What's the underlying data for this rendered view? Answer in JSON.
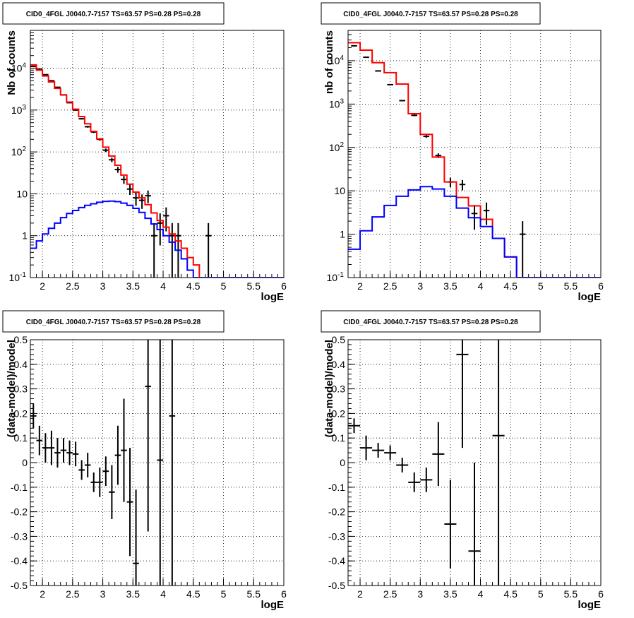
{
  "chart_data": [
    {
      "type": "line",
      "title": "CID0_4FGL J0040.7-7157 TS=63.57 PS=0.28 PS=0.28",
      "xlabel": "logE",
      "ylabel": "Nb of counts",
      "xlim": [
        1.8,
        6.0
      ],
      "ylim": [
        0.1,
        80000
      ],
      "yscale": "log",
      "grid": true,
      "xticks": [
        "2",
        "2.5",
        "3",
        "3.5",
        "4",
        "4.5",
        "5",
        "5.5",
        "6"
      ],
      "yticks": [
        "10^-1",
        "1",
        "10",
        "10^2",
        "10^3",
        "10^4"
      ],
      "bin_edges": [
        1.8,
        1.9,
        2.0,
        2.1,
        2.2,
        2.3,
        2.4,
        2.5,
        2.6,
        2.7,
        2.8,
        2.9,
        3.0,
        3.1,
        3.2,
        3.3,
        3.4,
        3.5,
        3.6,
        3.7,
        3.8,
        3.9,
        4.0,
        4.1,
        4.2,
        4.3,
        4.4,
        4.5,
        4.6,
        4.7,
        4.8,
        4.9,
        5.0,
        5.1,
        5.2,
        5.3,
        5.4,
        5.5,
        5.6,
        5.7,
        5.8,
        5.9,
        6.0
      ],
      "series": [
        {
          "color": "#000000",
          "kind": "points",
          "x": [
            1.85,
            1.95,
            2.05,
            2.15,
            2.25,
            2.35,
            2.45,
            2.55,
            2.65,
            2.75,
            2.85,
            2.95,
            3.05,
            3.15,
            3.25,
            3.35,
            3.45,
            3.55,
            3.65,
            3.75,
            3.85,
            3.95,
            4.05,
            4.15,
            4.25,
            4.75
          ],
          "y": [
            11000,
            9500,
            7000,
            5000,
            3500,
            2300,
            1500,
            1000,
            620,
            400,
            300,
            200,
            110,
            65,
            38,
            22,
            13,
            8,
            7,
            9,
            1,
            2,
            3,
            1,
            1,
            1
          ]
        },
        {
          "color": "#ff0000",
          "kind": "hist",
          "values": [
            12000,
            9000,
            6500,
            4700,
            3300,
            2300,
            1550,
            1050,
            700,
            470,
            310,
            205,
            130,
            80,
            48,
            28,
            17,
            11,
            8,
            5.5,
            3.5,
            2.3,
            1.6,
            1.1,
            0.75,
            0.5,
            0.3,
            0.2,
            0.1,
            0.1,
            0.1,
            0.1,
            0.1,
            0.1,
            0.1,
            0.1,
            0.1,
            0.1,
            0.1,
            0.1,
            0.1,
            0.1
          ]
        },
        {
          "color": "#0000ff",
          "kind": "hist",
          "values": [
            0.5,
            0.75,
            1.1,
            1.5,
            2.0,
            2.7,
            3.4,
            4.0,
            4.7,
            5.3,
            5.8,
            6.3,
            6.6,
            6.7,
            6.5,
            6.0,
            5.3,
            4.5,
            3.6,
            2.6,
            1.9,
            1.4,
            1.0,
            0.7,
            0.45,
            0.28,
            0.15,
            0.1,
            0.1,
            0.1,
            0.1,
            0.1,
            0.1,
            0.1,
            0.1,
            0.1,
            0.1,
            0.1,
            0.1,
            0.1,
            0.1,
            0.1
          ]
        }
      ]
    },
    {
      "type": "line",
      "title": "CID0_4FGL J0040.7-7157 TS=63.57 PS=0.28 PS=0.28",
      "xlabel": "logE",
      "ylabel": "nb of counts",
      "xlim": [
        1.8,
        6.0
      ],
      "ylim": [
        0.1,
        50000
      ],
      "yscale": "log",
      "grid": true,
      "xticks": [
        "2",
        "2.5",
        "3",
        "3.5",
        "4",
        "4.5",
        "5",
        "5.5",
        "6"
      ],
      "yticks": [
        "10^-1",
        "1",
        "10",
        "10^2",
        "10^3",
        "10^4"
      ],
      "bin_edges": [
        1.8,
        2.0,
        2.2,
        2.4,
        2.6,
        2.8,
        3.0,
        3.2,
        3.4,
        3.6,
        3.8,
        4.0,
        4.2,
        4.4,
        4.6,
        4.8,
        5.0,
        5.2,
        5.4,
        5.6,
        5.8,
        6.0
      ],
      "series": [
        {
          "color": "#000000",
          "kind": "points",
          "x": [
            1.9,
            2.1,
            2.3,
            2.5,
            2.7,
            2.9,
            3.1,
            3.3,
            3.5,
            3.7,
            3.9,
            4.1,
            4.7
          ],
          "y": [
            22000,
            12000,
            5800,
            2800,
            1200,
            550,
            180,
            65,
            16,
            14,
            3,
            3.5,
            1
          ]
        },
        {
          "color": "#ff0000",
          "kind": "hist",
          "values": [
            26000,
            17500,
            9000,
            5300,
            2900,
            600,
            200,
            60,
            16,
            7,
            4.5,
            2.2,
            0.8,
            0.3,
            0.1,
            0.1,
            0.1,
            0.1,
            0.1,
            0.1,
            0.1
          ]
        },
        {
          "color": "#0000ff",
          "kind": "hist",
          "values": [
            0.45,
            1.2,
            2.5,
            4.6,
            7.5,
            10.5,
            12.5,
            11,
            7.5,
            4,
            2.4,
            1.5,
            0.8,
            0.3,
            0.1,
            0.1,
            0.1,
            0.1,
            0.1,
            0.1,
            0.1
          ]
        }
      ]
    },
    {
      "type": "scatter",
      "title": "CID0_4FGL J0040.7-7157 TS=63.57 PS=0.28 PS=0.28",
      "xlabel": "logE",
      "ylabel": "(data-model)/model",
      "xlim": [
        1.8,
        6.0
      ],
      "ylim": [
        -0.5,
        0.5
      ],
      "grid": true,
      "xticks": [
        "2",
        "2.5",
        "3",
        "3.5",
        "4",
        "4.5",
        "5",
        "5.5",
        "6"
      ],
      "yticks": [
        "-0.5",
        "-0.4",
        "-0.3",
        "-0.2",
        "-0.1",
        "0",
        "0.1",
        "0.2",
        "0.3",
        "0.4",
        "0.5"
      ],
      "series": [
        {
          "color": "#000000",
          "x": [
            1.85,
            1.95,
            2.05,
            2.15,
            2.25,
            2.35,
            2.45,
            2.55,
            2.65,
            2.75,
            2.85,
            2.95,
            3.05,
            3.15,
            3.25,
            3.35,
            3.45,
            3.55,
            3.75,
            3.95,
            4.15
          ],
          "y": [
            0.19,
            0.09,
            0.06,
            0.06,
            0.04,
            0.05,
            0.04,
            0.035,
            -0.03,
            -0.01,
            -0.08,
            -0.08,
            -0.035,
            -0.12,
            0.03,
            0.05,
            -0.16,
            -0.41,
            0.31,
            0.01,
            0.19
          ],
          "err": [
            0.05,
            0.06,
            0.06,
            0.07,
            0.06,
            0.05,
            0.05,
            0.05,
            0.04,
            0.05,
            0.04,
            0.06,
            0.06,
            0.11,
            0.12,
            0.21,
            0.22,
            0.3,
            0.59,
            1.0,
            1.0
          ],
          "xerr": 0.05
        }
      ]
    },
    {
      "type": "scatter",
      "title": "CID0_4FGL J0040.7-7157 TS=63.57 PS=0.28 PS=0.28",
      "xlabel": "logE",
      "ylabel": "(data-model)/model",
      "xlim": [
        1.8,
        6.0
      ],
      "ylim": [
        -0.5,
        0.5
      ],
      "grid": true,
      "xticks": [
        "2",
        "2.5",
        "3",
        "3.5",
        "4",
        "4.5",
        "5",
        "5.5",
        "6"
      ],
      "yticks": [
        "-0.5",
        "-0.4",
        "-0.3",
        "-0.2",
        "-0.1",
        "0",
        "0.1",
        "0.2",
        "0.3",
        "0.4",
        "0.5"
      ],
      "series": [
        {
          "color": "#000000",
          "x": [
            1.9,
            2.1,
            2.3,
            2.5,
            2.7,
            2.9,
            3.1,
            3.3,
            3.5,
            3.7,
            3.9,
            4.3
          ],
          "y": [
            0.15,
            0.06,
            0.05,
            0.04,
            -0.01,
            -0.08,
            -0.07,
            0.035,
            -0.25,
            0.44,
            -0.36,
            0.11
          ],
          "err": [
            0.03,
            0.05,
            0.03,
            0.03,
            0.03,
            0.04,
            0.05,
            0.13,
            0.18,
            0.38,
            0.36,
            1.0
          ],
          "xerr": 0.1
        }
      ]
    }
  ]
}
